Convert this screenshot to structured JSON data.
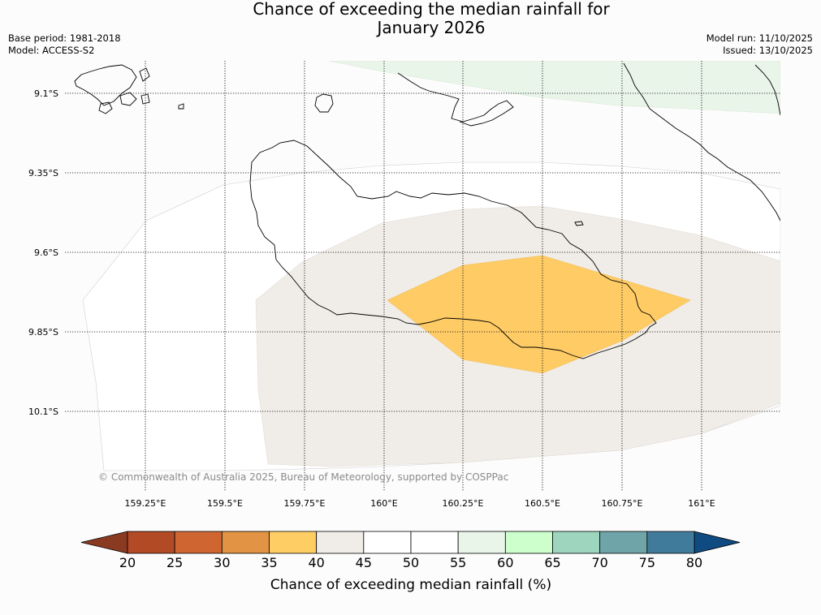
{
  "title": {
    "line1": "Chance of exceeding the median rainfall for",
    "line2": "January 2026"
  },
  "meta": {
    "base_period": "Base period: 1981-2018",
    "model": "Model: ACCESS-S2",
    "model_run": "Model run: 11/10/2025",
    "issued": "Issued: 13/10/2025"
  },
  "map": {
    "lat_labels": [
      "9.1°S",
      "9.35°S",
      "9.6°S",
      "9.85°S",
      "10.1°S"
    ],
    "lon_labels": [
      "159.25°E",
      "159.5°E",
      "159.75°E",
      "160°E",
      "160.25°E",
      "160.5°E",
      "160.75°E",
      "161°E"
    ],
    "credit": "© Commonwealth of Australia 2025, Bureau of Meteorology, supported by COSPPac"
  },
  "colorbar": {
    "title": "Chance of exceeding median rainfall (%)",
    "ticks": [
      "20",
      "25",
      "30",
      "35",
      "40",
      "45",
      "50",
      "55",
      "60",
      "65",
      "70",
      "75",
      "80"
    ],
    "colors": [
      "#b24a26",
      "#cf6632",
      "#e29444",
      "#fece65",
      "#f0ece7",
      "#ffffff",
      "#ffffff",
      "#eaf5ea",
      "#ccffcc",
      "#9dd5be",
      "#6fa5a8",
      "#417b9b"
    ],
    "low_extend_color": "#8b3a22",
    "high_extend_color": "#0f4a80"
  }
}
